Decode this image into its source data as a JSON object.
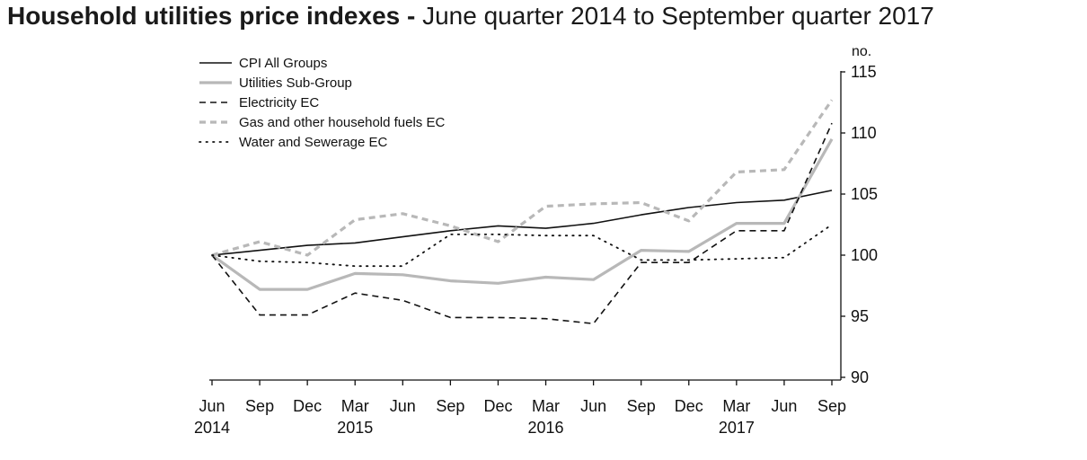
{
  "title_bold": "Household utilities price indexes -",
  "title_rest": "June quarter 2014 to September quarter 2017",
  "chart_data": {
    "type": "line",
    "title": "Household utilities price indexes - June quarter 2014 to September quarter 2017",
    "ylabel": "no.",
    "ylim": [
      90,
      115
    ],
    "yticks": [
      90,
      95,
      100,
      105,
      110,
      115
    ],
    "y_axis_side": "right",
    "grid": false,
    "legend_position": "top-left",
    "x_month_labels": [
      "Jun",
      "Sep",
      "Dec",
      "Mar",
      "Jun",
      "Sep",
      "Dec",
      "Mar",
      "Jun",
      "Sep",
      "Dec",
      "Mar",
      "Jun",
      "Sep"
    ],
    "x_year_labels": [
      {
        "index": 0,
        "label": "2014"
      },
      {
        "index": 3,
        "label": "2015"
      },
      {
        "index": 7,
        "label": "2016"
      },
      {
        "index": 11,
        "label": "2017"
      }
    ],
    "series": [
      {
        "name": "CPI All Groups",
        "color": "#111111",
        "dash": "solid",
        "values": [
          100.0,
          100.4,
          100.8,
          101.0,
          101.5,
          102.0,
          102.4,
          102.2,
          102.6,
          103.3,
          103.9,
          104.3,
          104.5,
          105.3
        ]
      },
      {
        "name": "Utilities Sub-Group",
        "color": "#b8b8b8",
        "dash": "solid",
        "values": [
          100.0,
          97.2,
          97.2,
          98.5,
          98.4,
          97.9,
          97.7,
          98.2,
          98.0,
          100.4,
          100.3,
          102.6,
          102.6,
          109.5
        ]
      },
      {
        "name": "Electricity EC",
        "color": "#111111",
        "dash": "dashed",
        "values": [
          100.0,
          95.1,
          95.1,
          96.9,
          96.3,
          94.9,
          94.9,
          94.8,
          94.4,
          99.4,
          99.4,
          102.0,
          102.0,
          110.8
        ]
      },
      {
        "name": "Gas and other household fuels EC",
        "color": "#b8b8b8",
        "dash": "dashed",
        "values": [
          100.0,
          101.1,
          100.0,
          102.9,
          103.4,
          102.4,
          101.1,
          104.0,
          104.2,
          104.3,
          102.8,
          106.8,
          107.0,
          112.7
        ]
      },
      {
        "name": "Water and Sewerage EC",
        "color": "#111111",
        "dash": "dotted",
        "values": [
          100.0,
          99.5,
          99.4,
          99.1,
          99.1,
          101.7,
          101.7,
          101.6,
          101.6,
          99.6,
          99.6,
          99.7,
          99.8,
          102.5
        ]
      }
    ]
  }
}
